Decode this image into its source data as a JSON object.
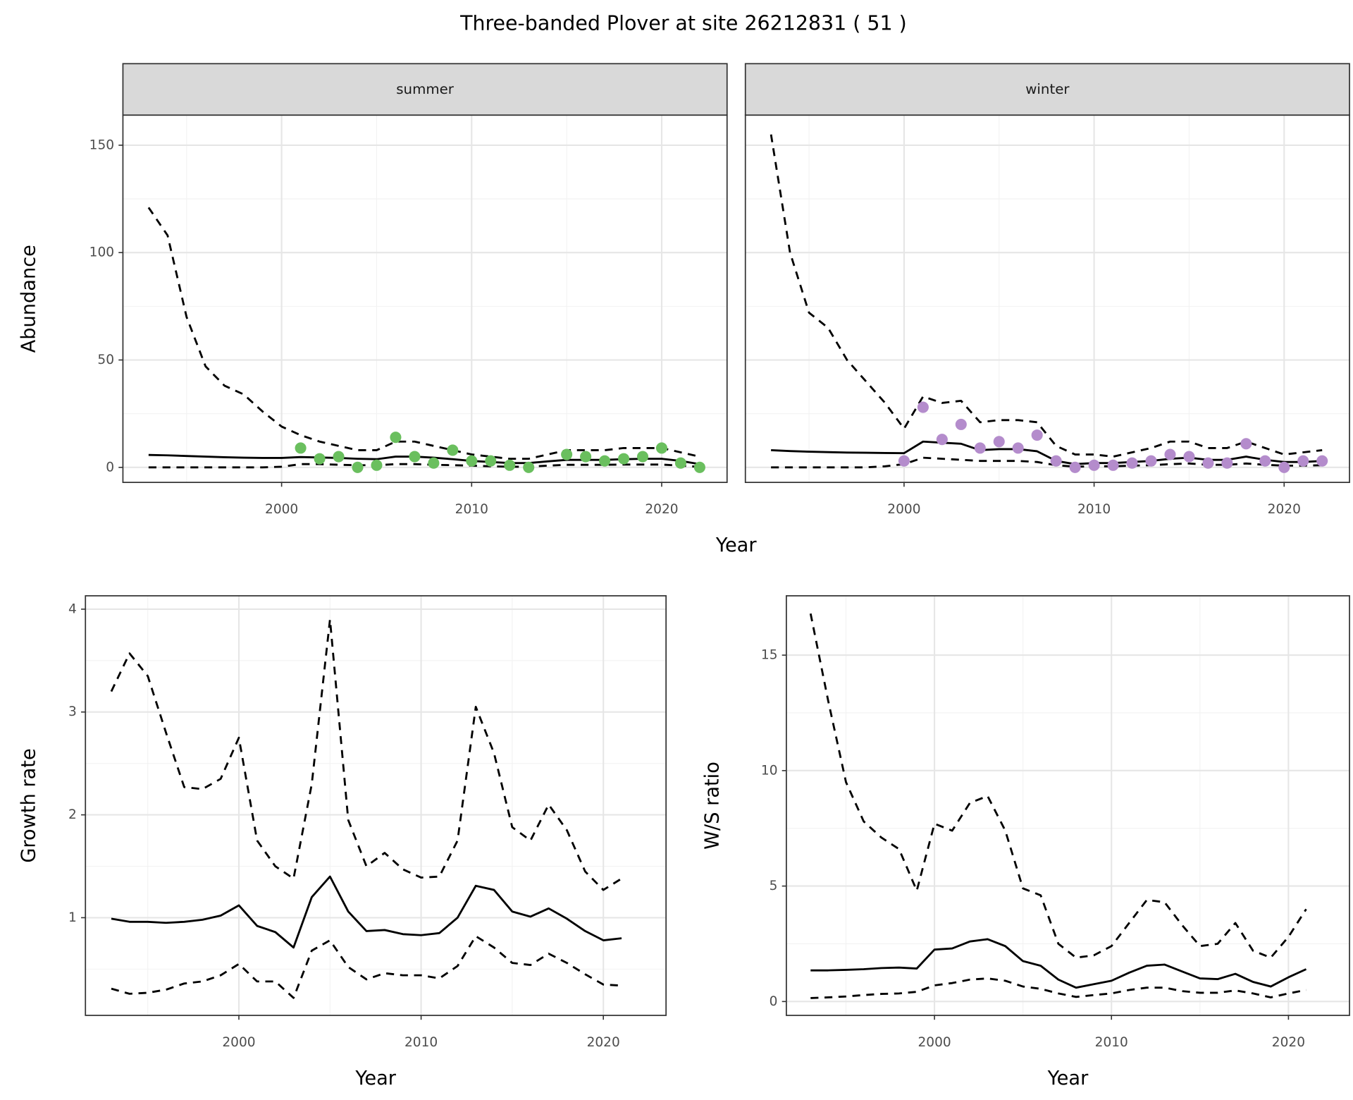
{
  "title": "Three-banded Plover at site 26212831 ( 51 )",
  "chart_data": [
    {
      "type": "line",
      "xlabel": "Year",
      "ylabel": "Abundance",
      "xlim": [
        1991.65,
        2023.44
      ],
      "ylim": [
        -7,
        164
      ],
      "xticks": [
        2000,
        2010,
        2020
      ],
      "yticks": [
        0,
        50,
        100,
        150
      ],
      "grid": true,
      "facets": [
        {
          "label": "summer",
          "x": [
            1993,
            1994,
            1995,
            1996,
            1997,
            1998,
            1999,
            2000,
            2001,
            2002,
            2003,
            2004,
            2005,
            2006,
            2007,
            2008,
            2009,
            2010,
            2011,
            2012,
            2013,
            2014,
            2015,
            2016,
            2017,
            2018,
            2019,
            2020,
            2021,
            2022
          ],
          "series": [
            {
              "color": "#000000",
              "linetype": "dashed",
              "values": [
                121,
                108,
                70,
                47,
                38,
                34,
                26,
                19,
                15,
                12,
                10,
                8,
                8,
                12,
                12,
                10,
                8,
                6,
                5,
                4,
                4,
                6,
                8,
                8,
                8,
                9,
                9,
                9,
                7,
                5
              ]
            },
            {
              "color": "#000000",
              "linetype": "solid",
              "values": [
                5.8,
                5.6,
                5.3,
                5.0,
                4.7,
                4.5,
                4.4,
                4.4,
                4.8,
                4.6,
                4.4,
                4.0,
                3.8,
                5.0,
                5.0,
                4.5,
                3.8,
                3.0,
                2.5,
                2.0,
                2.0,
                2.8,
                3.5,
                3.5,
                3.5,
                3.8,
                4.0,
                4.0,
                3.0,
                1.5
              ]
            },
            {
              "color": "#000000",
              "linetype": "dashed",
              "values": [
                0,
                0,
                0,
                0,
                0,
                0,
                0,
                0.3,
                1.5,
                1.5,
                1.2,
                1.0,
                1.0,
                1.5,
                1.5,
                1.2,
                1.0,
                0.8,
                0.5,
                0.3,
                0.3,
                0.8,
                1.2,
                1.2,
                1.2,
                1.3,
                1.3,
                1.3,
                0.8,
                0.2
              ]
            }
          ],
          "points": {
            "color": "#6abf5e",
            "x": [
              2001,
              2002,
              2003,
              2004,
              2005,
              2006,
              2007,
              2008,
              2009,
              2010,
              2011,
              2012,
              2013,
              2015,
              2016,
              2017,
              2018,
              2019,
              2020,
              2021,
              2022
            ],
            "values": [
              9,
              4,
              5,
              0,
              1,
              14,
              5,
              2,
              8,
              3,
              3,
              1,
              0,
              6,
              5,
              3,
              4,
              5,
              9,
              2,
              0
            ]
          }
        },
        {
          "label": "winter",
          "x": [
            1993,
            1994,
            1995,
            1996,
            1997,
            1998,
            1999,
            2000,
            2001,
            2002,
            2003,
            2004,
            2005,
            2006,
            2007,
            2008,
            2009,
            2010,
            2011,
            2012,
            2013,
            2014,
            2015,
            2016,
            2017,
            2018,
            2019,
            2020,
            2021,
            2022
          ],
          "series": [
            {
              "color": "#000000",
              "linetype": "dashed",
              "values": [
                155,
                100,
                72,
                65,
                50,
                40,
                30,
                18,
                33,
                30,
                31,
                21,
                22,
                22,
                21,
                10,
                6,
                6,
                5,
                7,
                9,
                12,
                12,
                9,
                9,
                12,
                9,
                6,
                7,
                8
              ]
            },
            {
              "color": "#000000",
              "linetype": "solid",
              "values": [
                8,
                7.6,
                7.3,
                7.1,
                6.9,
                6.8,
                6.7,
                6.6,
                12,
                11.5,
                11,
                8,
                8.5,
                8.5,
                7.5,
                3,
                1.5,
                2,
                2,
                2.5,
                3,
                4,
                4.5,
                3.5,
                3.5,
                5,
                3.5,
                2.5,
                2.5,
                3
              ]
            },
            {
              "color": "#000000",
              "linetype": "dashed",
              "values": [
                0,
                0,
                0,
                0,
                0,
                0,
                0.5,
                1.5,
                4.5,
                4,
                3.5,
                3,
                3,
                3,
                2.5,
                1,
                0.3,
                0.5,
                0.5,
                0.8,
                1,
                1.5,
                1.8,
                1.2,
                1.2,
                1.8,
                1.2,
                0.8,
                0.8,
                1
              ]
            }
          ],
          "points": {
            "color": "#b48ccc",
            "x": [
              2000,
              2001,
              2002,
              2003,
              2004,
              2005,
              2006,
              2007,
              2008,
              2009,
              2010,
              2011,
              2012,
              2013,
              2014,
              2015,
              2016,
              2017,
              2018,
              2019,
              2020,
              2021,
              2022
            ],
            "values": [
              3,
              28,
              13,
              20,
              9,
              12,
              9,
              15,
              3,
              0,
              1,
              1,
              2,
              3,
              6,
              5,
              2,
              2,
              11,
              3,
              0,
              3,
              3
            ]
          }
        }
      ]
    },
    {
      "type": "line",
      "xlabel": "Year",
      "ylabel": "Growth rate",
      "xlim": [
        1991.58,
        2023.44
      ],
      "ylim": [
        0.05,
        4.13
      ],
      "xticks": [
        2000,
        2010,
        2020
      ],
      "yticks": [
        1,
        2,
        3,
        4
      ],
      "grid": true,
      "x": [
        1993,
        1994,
        1995,
        1996,
        1997,
        1998,
        1999,
        2000,
        2001,
        2002,
        2003,
        2004,
        2005,
        2006,
        2007,
        2008,
        2009,
        2010,
        2011,
        2012,
        2013,
        2014,
        2015,
        2016,
        2017,
        2018,
        2019,
        2020,
        2021
      ],
      "series": [
        {
          "color": "#000000",
          "linetype": "dashed",
          "values": [
            3.2,
            3.57,
            3.35,
            2.8,
            2.27,
            2.25,
            2.35,
            2.75,
            1.75,
            1.5,
            1.38,
            2.3,
            3.9,
            1.95,
            1.5,
            1.63,
            1.47,
            1.39,
            1.4,
            1.75,
            3.05,
            2.6,
            1.88,
            1.75,
            2.1,
            1.85,
            1.45,
            1.27,
            1.38
          ]
        },
        {
          "color": "#000000",
          "linetype": "solid",
          "values": [
            0.99,
            0.96,
            0.96,
            0.95,
            0.96,
            0.98,
            1.02,
            1.12,
            0.92,
            0.86,
            0.71,
            1.2,
            1.4,
            1.06,
            0.87,
            0.88,
            0.84,
            0.83,
            0.85,
            1.0,
            1.31,
            1.27,
            1.06,
            1.01,
            1.09,
            0.99,
            0.87,
            0.78,
            0.8
          ]
        },
        {
          "color": "#000000",
          "linetype": "dashed",
          "values": [
            0.31,
            0.26,
            0.27,
            0.3,
            0.36,
            0.38,
            0.44,
            0.55,
            0.38,
            0.38,
            0.22,
            0.68,
            0.78,
            0.52,
            0.4,
            0.46,
            0.44,
            0.44,
            0.41,
            0.53,
            0.82,
            0.71,
            0.56,
            0.54,
            0.65,
            0.56,
            0.45,
            0.35,
            0.34
          ]
        }
      ]
    },
    {
      "type": "line",
      "xlabel": "Year",
      "ylabel": "W/S ratio",
      "xlim": [
        1991.63,
        2023.45
      ],
      "ylim": [
        -0.6,
        17.57
      ],
      "xticks": [
        2000,
        2010,
        2020
      ],
      "yticks": [
        0,
        5,
        10,
        15
      ],
      "grid": true,
      "x": [
        1993,
        1994,
        1995,
        1996,
        1997,
        1998,
        1999,
        2000,
        2001,
        2002,
        2003,
        2004,
        2005,
        2006,
        2007,
        2008,
        2009,
        2010,
        2011,
        2012,
        2013,
        2014,
        2015,
        2016,
        2017,
        2018,
        2019,
        2020,
        2021
      ],
      "series": [
        {
          "color": "#000000",
          "linetype": "dashed",
          "values": [
            16.8,
            13,
            9.5,
            7.8,
            7.1,
            6.6,
            4.8,
            7.7,
            7.4,
            8.6,
            8.9,
            7.4,
            4.9,
            4.6,
            2.5,
            1.9,
            2.0,
            2.4,
            3.4,
            4.4,
            4.3,
            3.3,
            2.4,
            2.5,
            3.4,
            2.2,
            1.9,
            2.8,
            4.0
          ]
        },
        {
          "color": "#000000",
          "linetype": "solid",
          "values": [
            1.35,
            1.35,
            1.37,
            1.4,
            1.45,
            1.47,
            1.43,
            2.25,
            2.3,
            2.6,
            2.7,
            2.4,
            1.75,
            1.55,
            0.95,
            0.6,
            0.75,
            0.9,
            1.25,
            1.55,
            1.6,
            1.3,
            1.0,
            0.97,
            1.2,
            0.85,
            0.65,
            1.05,
            1.4
          ]
        },
        {
          "color": "#000000",
          "linetype": "dashed",
          "values": [
            0.15,
            0.18,
            0.22,
            0.28,
            0.33,
            0.35,
            0.42,
            0.7,
            0.8,
            0.95,
            1.0,
            0.9,
            0.65,
            0.55,
            0.35,
            0.2,
            0.28,
            0.35,
            0.5,
            0.6,
            0.6,
            0.45,
            0.38,
            0.38,
            0.48,
            0.35,
            0.18,
            0.35,
            0.5
          ]
        }
      ]
    }
  ]
}
